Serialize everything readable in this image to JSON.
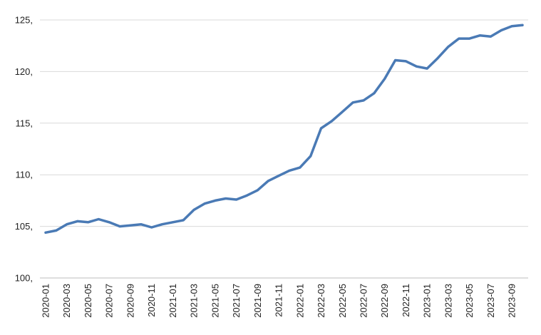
{
  "chart_data": {
    "type": "line",
    "title": "",
    "xlabel": "",
    "ylabel": "",
    "ylim": [
      100,
      125
    ],
    "y_ticks": [
      100,
      105,
      110,
      115,
      120,
      125
    ],
    "y_tick_labels": [
      "100,",
      "105,",
      "110,",
      "115,",
      "120,",
      "125,"
    ],
    "grid": "horizontal",
    "legend": "none",
    "x_tick_labels": [
      "2020-01",
      "2020-03",
      "2020-05",
      "2020-07",
      "2020-09",
      "2020-11",
      "2021-01",
      "2021-03",
      "2021-05",
      "2021-07",
      "2021-09",
      "2021-11",
      "2022-01",
      "2022-03",
      "2022-05",
      "2022-07",
      "2022-09",
      "2022-11",
      "2023-01",
      "2023-03",
      "2023-05",
      "2023-07",
      "2023-09"
    ],
    "x": [
      "2020-01",
      "2020-02",
      "2020-03",
      "2020-04",
      "2020-05",
      "2020-06",
      "2020-07",
      "2020-08",
      "2020-09",
      "2020-10",
      "2020-11",
      "2020-12",
      "2021-01",
      "2021-02",
      "2021-03",
      "2021-04",
      "2021-05",
      "2021-06",
      "2021-07",
      "2021-08",
      "2021-09",
      "2021-10",
      "2021-11",
      "2021-12",
      "2022-01",
      "2022-02",
      "2022-03",
      "2022-04",
      "2022-05",
      "2022-06",
      "2022-07",
      "2022-08",
      "2022-09",
      "2022-10",
      "2022-11",
      "2022-12",
      "2023-01",
      "2023-02",
      "2023-03",
      "2023-04",
      "2023-05",
      "2023-06",
      "2023-07",
      "2023-08",
      "2023-09",
      "2023-10"
    ],
    "series": [
      {
        "color": "#4a7ab5",
        "values": [
          104.4,
          104.6,
          105.2,
          105.5,
          105.4,
          105.7,
          105.4,
          105.0,
          105.1,
          105.2,
          104.9,
          105.2,
          105.4,
          105.6,
          106.6,
          107.2,
          107.5,
          107.7,
          107.6,
          108.0,
          108.5,
          109.4,
          109.9,
          110.4,
          110.7,
          111.8,
          114.5,
          115.2,
          116.1,
          117.0,
          117.2,
          117.9,
          119.3,
          121.1,
          121.0,
          120.5,
          120.3,
          121.3,
          122.4,
          123.2,
          123.2,
          123.5,
          123.4,
          124.0,
          124.4,
          124.5
        ]
      }
    ]
  }
}
